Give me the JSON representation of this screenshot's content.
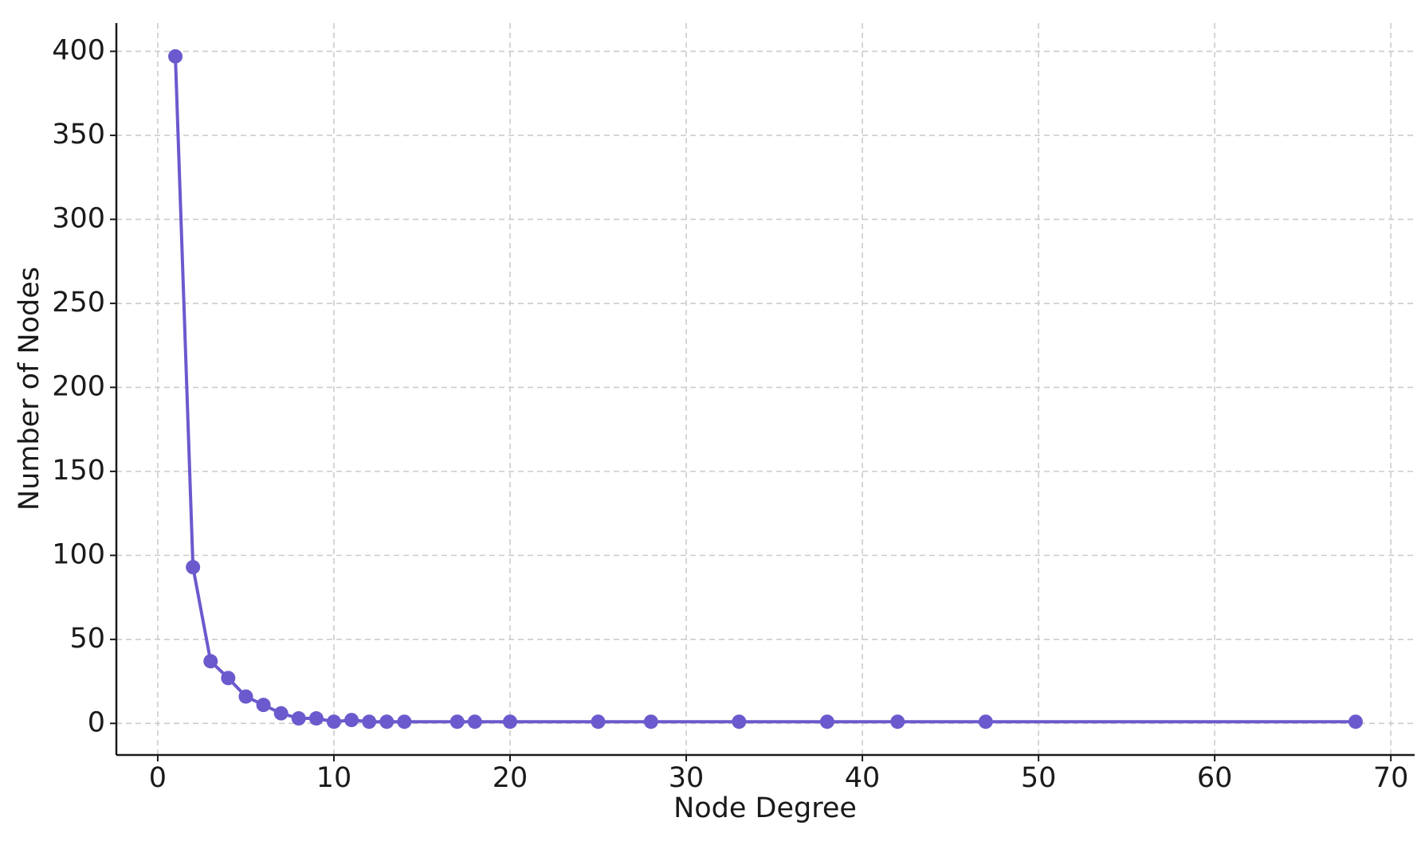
{
  "chart_data": {
    "type": "line",
    "x_label": "Node Degree",
    "y_label": "Number of Nodes",
    "x": [
      1,
      2,
      3,
      4,
      5,
      6,
      7,
      8,
      9,
      10,
      11,
      12,
      13,
      14,
      17,
      18,
      20,
      25,
      28,
      33,
      38,
      42,
      47,
      68
    ],
    "series": [
      {
        "color": "#6a5acd",
        "values": [
          397,
          93,
          37,
          27,
          16,
          11,
          6,
          3,
          3,
          1,
          2,
          1,
          1,
          1,
          1,
          1,
          1,
          1,
          1,
          1,
          1,
          1,
          1,
          1
        ]
      }
    ],
    "xlim": [
      -2.35,
      71.35
    ],
    "ylim": [
      -18.8,
      416.8
    ],
    "xticks": [
      0,
      10,
      20,
      30,
      40,
      50,
      60,
      70
    ],
    "yticks": [
      0,
      50,
      100,
      150,
      200,
      250,
      300,
      350,
      400
    ],
    "grid": true,
    "marker": "circle"
  }
}
